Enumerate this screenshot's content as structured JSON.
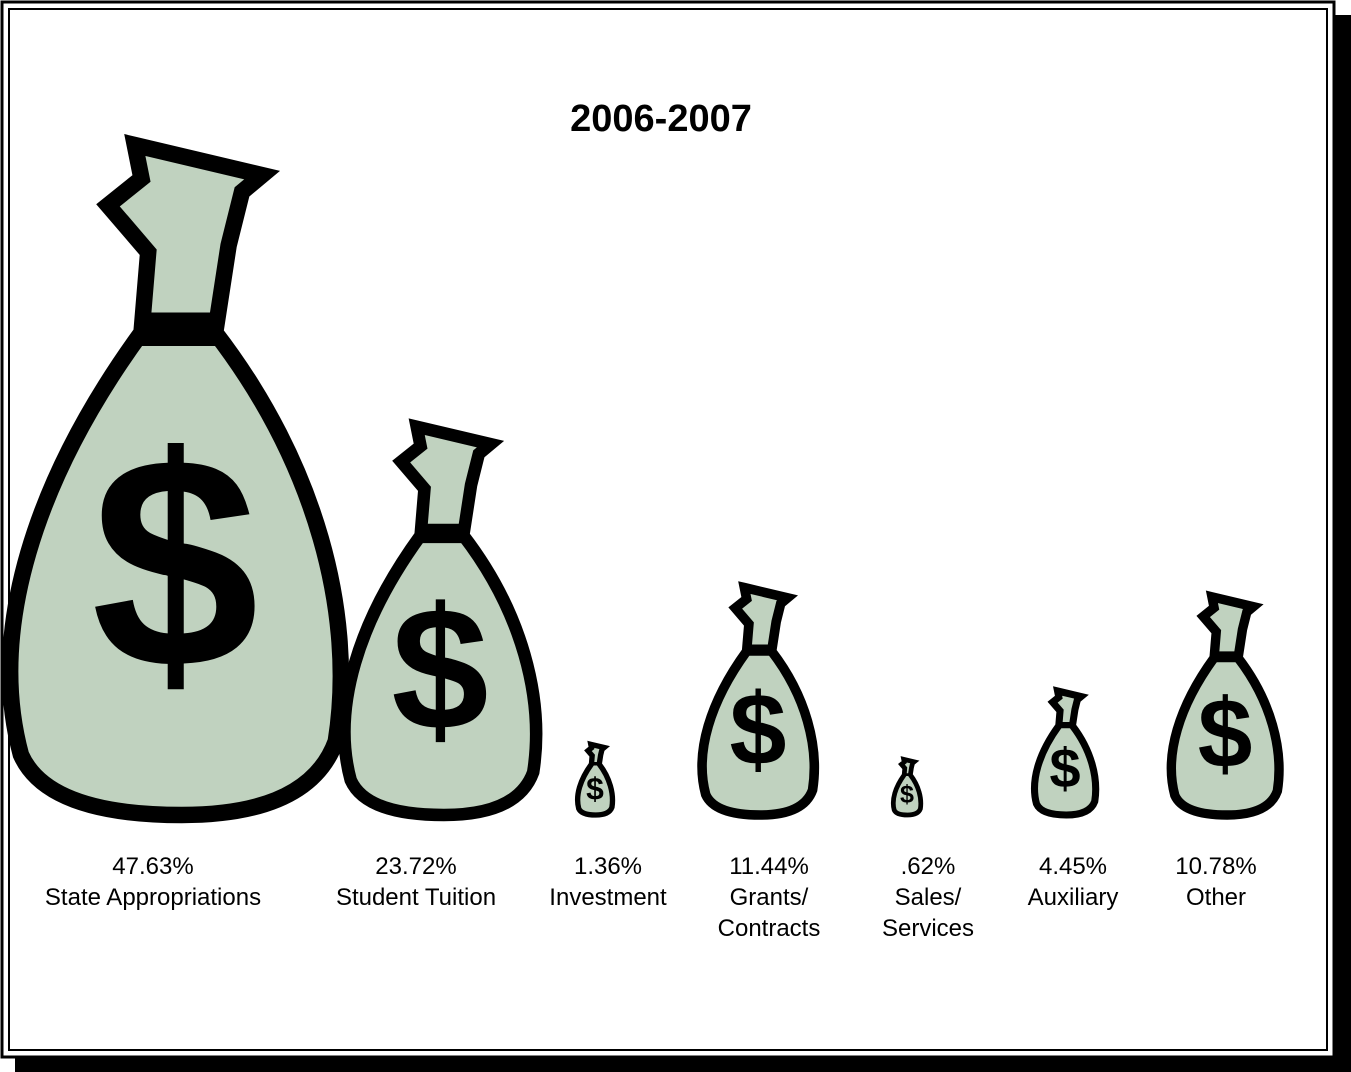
{
  "chart_data": {
    "type": "pictorial",
    "title": "2006-2007",
    "categories": [
      "State Appropriations",
      "Student Tuition",
      "Investment",
      "Grants/ Contracts",
      "Sales/ Services",
      "Auxiliary",
      "Other"
    ],
    "values": [
      47.63,
      23.72,
      1.36,
      11.44,
      0.62,
      4.45,
      10.78
    ],
    "value_labels": [
      "47.63%",
      "23.72%",
      "1.36%",
      "11.44%",
      ".62%",
      "4.45%",
      "10.78%"
    ],
    "color": "#c0d2bf"
  }
}
